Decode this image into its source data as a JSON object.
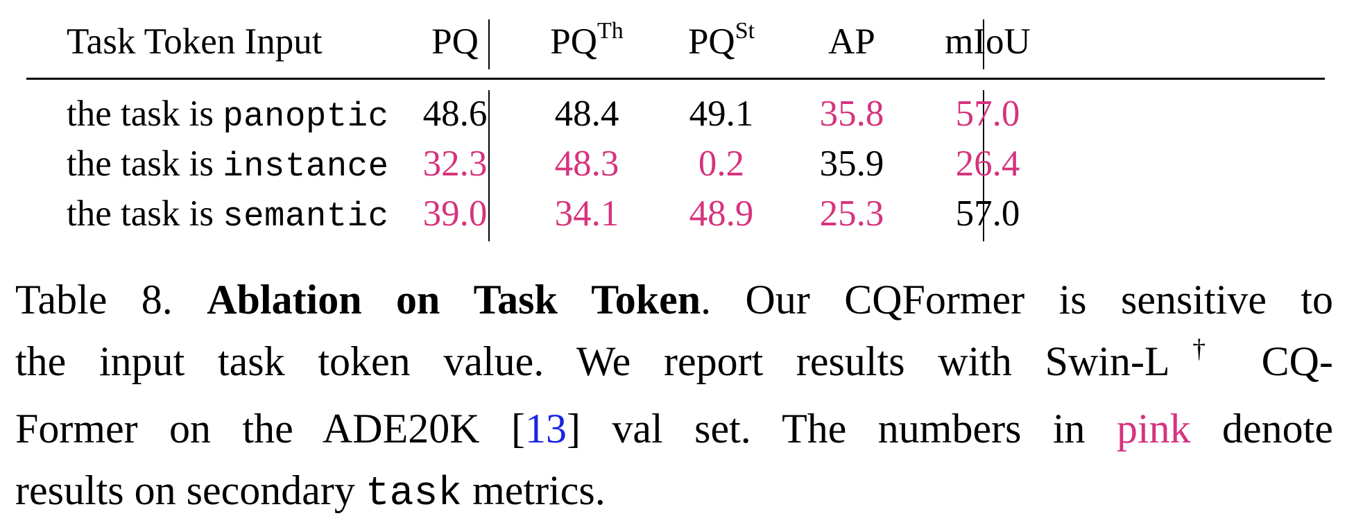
{
  "table": {
    "headers": {
      "input": "Task Token Input",
      "pq": "PQ",
      "pq_th_base": "PQ",
      "pq_th_sup": "Th",
      "pq_st_base": "PQ",
      "pq_st_sup": "St",
      "ap": "AP",
      "miou": "mIoU"
    },
    "rows": [
      {
        "prefix": "the task is ",
        "token": "panoptic",
        "pq": "48.6",
        "pq_th": "48.4",
        "pq_st": "49.1",
        "ap": "35.8",
        "miou": "57.0"
      },
      {
        "prefix": "the task is ",
        "token": "instance",
        "pq": "32.3",
        "pq_th": "48.3",
        "pq_st": "0.2",
        "ap": "35.9",
        "miou": "26.4"
      },
      {
        "prefix": "the task is ",
        "token": "semantic",
        "pq": "39.0",
        "pq_th": "34.1",
        "pq_st": "48.9",
        "ap": "25.3",
        "miou": "57.0"
      }
    ],
    "pink_color": "#d6337e"
  },
  "caption": {
    "label": "Table 8.",
    "title": "Ablation on Task Token",
    "line1_rest": ". Our CQFormer is sensitive to",
    "line2_a": "the input task token value.  We report results with Swin-L",
    "line2_sup": "†",
    "line2_b": " CQ-",
    "line3_a": "Former on the ADE20K [",
    "cite": "13",
    "line3_b": "] val set. The numbers in ",
    "pink_word": "pink",
    "line3_c": " denote",
    "line4_a": "results on secondary ",
    "line4_mono": "task",
    "line4_b": " metrics.",
    "cite_color": "#1a25e0"
  }
}
